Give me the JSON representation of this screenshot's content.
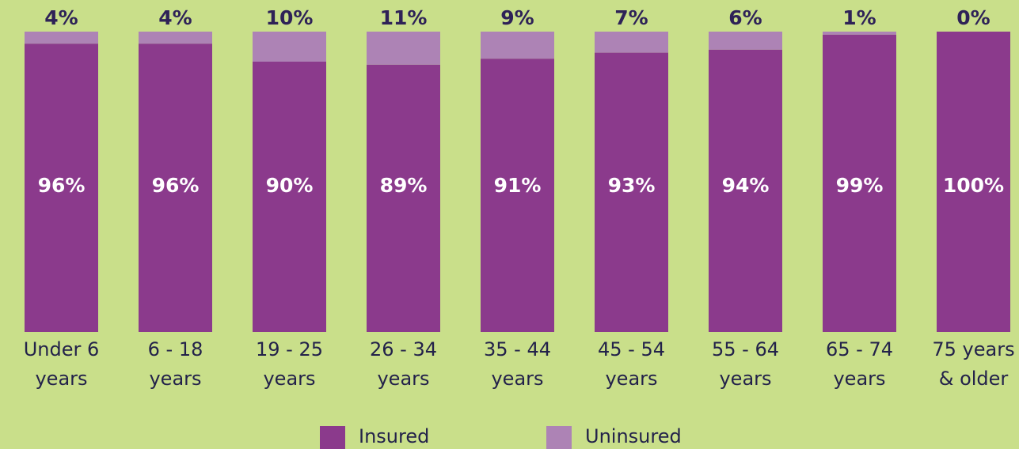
{
  "chart_data": {
    "type": "stacked_bar",
    "categories": [
      [
        "Under 6",
        "years"
      ],
      [
        "6 - 18",
        "years"
      ],
      [
        "19 - 25",
        "years"
      ],
      [
        "26 - 34",
        "years"
      ],
      [
        "35 - 44",
        "years"
      ],
      [
        "45 - 54",
        "years"
      ],
      [
        "55 - 64",
        "years"
      ],
      [
        "65 - 74",
        "years"
      ],
      [
        "75 years",
        "& older"
      ]
    ],
    "series": [
      {
        "name": "Insured",
        "color": "#8b3a8c",
        "values": [
          96,
          96,
          90,
          89,
          91,
          93,
          94,
          99,
          100
        ],
        "value_labels": [
          "96%",
          "96%",
          "90%",
          "89%",
          "91%",
          "93%",
          "94%",
          "99%",
          "100%"
        ]
      },
      {
        "name": "Uninsured",
        "color": "#ad83b5",
        "values": [
          4,
          4,
          10,
          11,
          9,
          7,
          6,
          1,
          0
        ],
        "value_labels": [
          "4%",
          "4%",
          "10%",
          "11%",
          "9%",
          "7%",
          "6%",
          "1%",
          "0%"
        ]
      }
    ],
    "ylim": [
      0,
      100
    ]
  }
}
